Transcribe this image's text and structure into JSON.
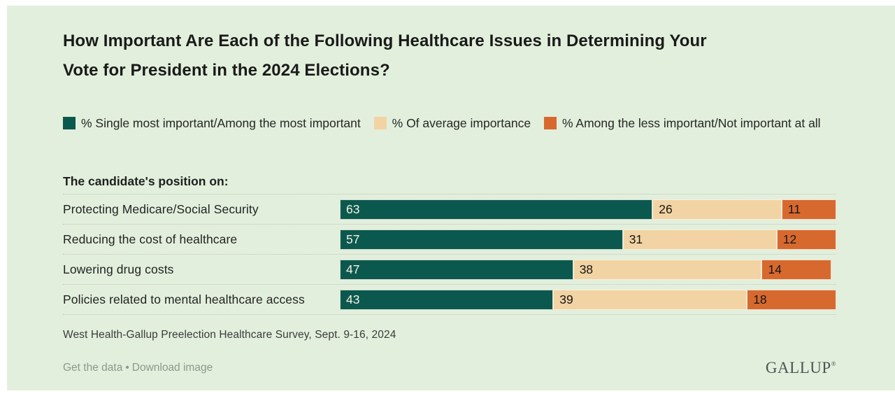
{
  "panel": {
    "background": "#e2efdc"
  },
  "title": {
    "lines": [
      "How Important Are Each of the Following Healthcare Issues in Determining Your",
      "Vote for President in the 2024 Elections?"
    ]
  },
  "legend": {
    "items": [
      {
        "label": "% Single most important/Among the most important",
        "color": "#0b584e"
      },
      {
        "label": "% Of average importance",
        "color": "#f2d3a3"
      },
      {
        "label": "% Among the less important/Not important at all",
        "color": "#d7692f"
      }
    ]
  },
  "section_label": "The candidate's position on:",
  "chart_data": {
    "type": "bar",
    "orientation": "horizontal",
    "stacked": true,
    "xlim": [
      0,
      100
    ],
    "value_labels": "inside-start",
    "grid": "dotted-row-separators",
    "categories": [
      "Protecting Medicare/Social Security",
      "Reducing the cost of healthcare",
      "Lowering drug costs",
      "Policies related to mental healthcare access"
    ],
    "series": [
      {
        "name": "% Single most important/Among the most important",
        "color": "#0b584e",
        "label_color": "#f6f2e6",
        "values": [
          63,
          57,
          47,
          43
        ]
      },
      {
        "name": "% Of average importance",
        "color": "#f2d3a3",
        "label_color": "#151515",
        "values": [
          26,
          31,
          38,
          39
        ]
      },
      {
        "name": "% Among the less important/Not important at all",
        "color": "#d7692f",
        "label_color": "#151515",
        "values": [
          11,
          12,
          14,
          18
        ]
      }
    ]
  },
  "source": "West Health-Gallup Preelection Healthcare Survey, Sept. 9-16, 2024",
  "footer": {
    "links": [
      "Get the data",
      "Download image"
    ],
    "separator": "•",
    "logo": "GALLUP",
    "logo_mark": "®"
  }
}
